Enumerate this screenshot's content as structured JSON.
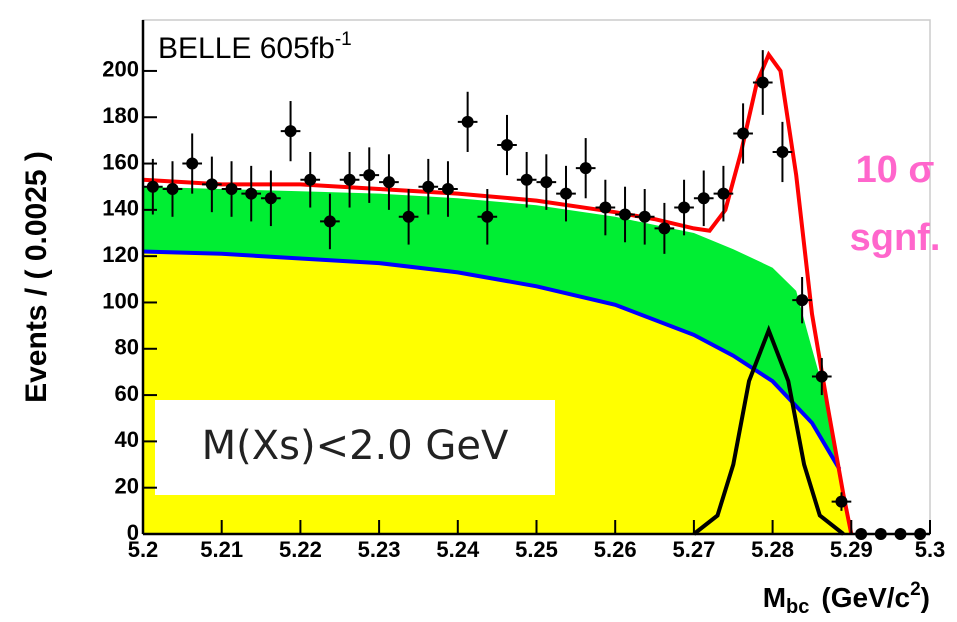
{
  "chart_data": {
    "type": "scatter",
    "y_label": "Events / ( 0.0025 )",
    "x_label": {
      "symbol": "M",
      "subscript": "bc",
      "unit": "(GeV/c",
      "superscript": "2",
      "close": ")"
    },
    "experiment": {
      "text": "BELLE 605fb",
      "superscript": "-1"
    },
    "significance": {
      "line1": "10 σ",
      "line2": "sgnf.",
      "color": "#ff66cc"
    },
    "selection": "M(Xs)<2.0 GeV",
    "xlim": [
      5.2,
      5.3
    ],
    "ylim": [
      0,
      222
    ],
    "xticks": [
      5.2,
      5.21,
      5.22,
      5.23,
      5.24,
      5.25,
      5.26,
      5.27,
      5.28,
      5.29,
      5.3
    ],
    "yticks": [
      0,
      20,
      40,
      60,
      80,
      100,
      120,
      140,
      160,
      180,
      200
    ],
    "points": {
      "color": "#000000",
      "x": [
        5.20125,
        5.20375,
        5.20625,
        5.20875,
        5.21125,
        5.21375,
        5.21625,
        5.21875,
        5.22125,
        5.22375,
        5.22625,
        5.22875,
        5.23125,
        5.23375,
        5.23625,
        5.23875,
        5.24125,
        5.24375,
        5.24625,
        5.24875,
        5.25125,
        5.25375,
        5.25625,
        5.25875,
        5.26125,
        5.26375,
        5.26625,
        5.26875,
        5.27125,
        5.27375,
        5.27625,
        5.27875,
        5.28125,
        5.28375,
        5.28625,
        5.28875,
        5.29125,
        5.29375,
        5.29625,
        5.29875
      ],
      "values": [
        150,
        149,
        160,
        151,
        149,
        147,
        145,
        174,
        153,
        135,
        153,
        155,
        152,
        137,
        150,
        149,
        178,
        137,
        168,
        153,
        152,
        147,
        158,
        141,
        138,
        137,
        132,
        141,
        145,
        147,
        173,
        195,
        165,
        101,
        68,
        14,
        0,
        0,
        0,
        0
      ],
      "errors": [
        12,
        12,
        13,
        12,
        12,
        12,
        12,
        13,
        12,
        12,
        12,
        12,
        12,
        12,
        12,
        12,
        13,
        12,
        13,
        12,
        12,
        12,
        13,
        12,
        12,
        12,
        11,
        12,
        12,
        12,
        13,
        14,
        13,
        10,
        8,
        4,
        1,
        1,
        1,
        1
      ]
    },
    "curves": [
      {
        "role": "area",
        "color": "#00ee33",
        "x": [
          5.2,
          5.21,
          5.22,
          5.23,
          5.24,
          5.25,
          5.26,
          5.27,
          5.275,
          5.28,
          5.283,
          5.285,
          5.2875,
          5.289,
          5.29
        ],
        "values": [
          150,
          149,
          148,
          147,
          145,
          142,
          137,
          130,
          123,
          115,
          105,
          80,
          50,
          15,
          0
        ]
      },
      {
        "role": "area",
        "color": "#ffff00",
        "x": [
          5.2,
          5.21,
          5.22,
          5.23,
          5.24,
          5.25,
          5.26,
          5.27,
          5.275,
          5.28,
          5.285,
          5.2885,
          5.29
        ],
        "values": [
          122,
          121,
          119,
          117,
          113,
          107,
          99,
          86,
          77,
          66,
          48,
          28,
          0
        ]
      },
      {
        "role": "line",
        "color": "#0000ff",
        "x": [
          5.2,
          5.21,
          5.22,
          5.23,
          5.24,
          5.25,
          5.26,
          5.27,
          5.275,
          5.28,
          5.285,
          5.2885
        ],
        "values": [
          122,
          121,
          119,
          117,
          113,
          107,
          99,
          86,
          77,
          66,
          48,
          28
        ]
      },
      {
        "role": "line",
        "color": "#ff0000",
        "x": [
          5.2,
          5.21,
          5.22,
          5.23,
          5.24,
          5.25,
          5.26,
          5.265,
          5.27,
          5.272,
          5.274,
          5.276,
          5.278,
          5.2795,
          5.281,
          5.283,
          5.285,
          5.287,
          5.289,
          5.29
        ],
        "values": [
          153,
          151,
          151,
          149,
          147,
          144,
          139,
          136,
          132,
          131,
          140,
          165,
          195,
          207,
          200,
          155,
          95,
          55,
          17,
          0
        ]
      },
      {
        "role": "line",
        "color": "#000000",
        "x": [
          5.27,
          5.273,
          5.275,
          5.277,
          5.2795,
          5.282,
          5.284,
          5.286,
          5.289
        ],
        "values": [
          0,
          8,
          30,
          66,
          88,
          66,
          30,
          8,
          0
        ]
      }
    ]
  }
}
